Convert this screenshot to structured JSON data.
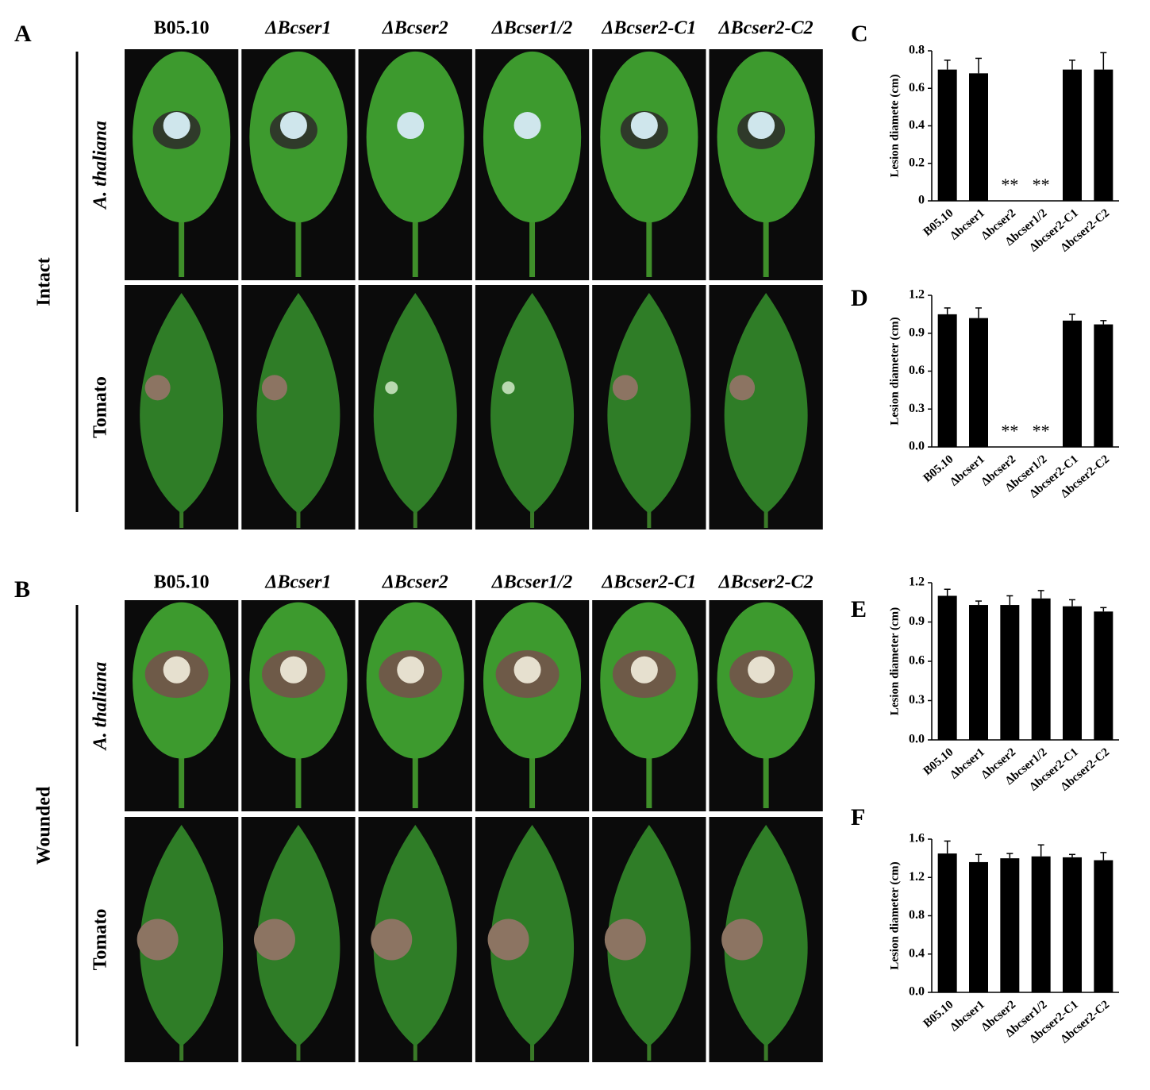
{
  "panels": [
    {
      "letter": "A",
      "condition": "Intact",
      "columns": [
        "B05.10",
        "ΔBcser1",
        "ΔBcser2",
        "ΔBcser1/2",
        "ΔBcser2-C1",
        "ΔBcser2-C2"
      ],
      "rows": [
        "A. thaliana",
        "Tomato"
      ]
    },
    {
      "letter": "B",
      "condition": "Wounded",
      "columns": [
        "B05.10",
        "ΔBcser1",
        "ΔBcser2",
        "ΔBcser1/2",
        "ΔBcser2-C1",
        "ΔBcser2-C2"
      ],
      "rows": [
        "A. thaliana",
        "Tomato"
      ]
    }
  ],
  "chart_data": [
    {
      "type": "bar",
      "letter": "C",
      "ylabel": "Lesion diamete (cm)",
      "categories": [
        "B05.10",
        "Δbcser1",
        "Δbcser2",
        "Δbcser1/2",
        "Δbcser2-C1",
        "Δbcser2-C2"
      ],
      "values": [
        0.7,
        0.68,
        0,
        0,
        0.7,
        0.7
      ],
      "errors": [
        0.05,
        0.08,
        0,
        0,
        0.05,
        0.09
      ],
      "significance": [
        null,
        null,
        "**",
        "**",
        null,
        null
      ],
      "color": "#000000",
      "ylim": [
        0,
        0.8
      ],
      "yticks": [
        0,
        0.2,
        0.4,
        0.6,
        0.8
      ]
    },
    {
      "type": "bar",
      "letter": "D",
      "ylabel": "Lesion diameter (cm)",
      "categories": [
        "B05.10",
        "Δbcser1",
        "Δbcser2",
        "Δbcser1/2",
        "Δbcser2-C1",
        "Δbcser2-C2"
      ],
      "values": [
        1.05,
        1.02,
        0,
        0,
        1.0,
        0.97
      ],
      "errors": [
        0.05,
        0.08,
        0,
        0,
        0.05,
        0.03
      ],
      "significance": [
        null,
        null,
        "**",
        "**",
        null,
        null
      ],
      "color": "#000000",
      "ylim": [
        0,
        1.2
      ],
      "yticks": [
        {
          "value": 0,
          "label": "0.0"
        },
        0.3,
        0.6,
        0.9,
        1.2
      ]
    },
    {
      "type": "bar",
      "letter": "E",
      "ylabel": "Lesion diameter (cm)",
      "categories": [
        "B05.10",
        "Δbcser1",
        "Δbcser2",
        "Δbcser1/2",
        "Δbcser2-C1",
        "Δbcser2-C2"
      ],
      "values": [
        1.1,
        1.03,
        1.03,
        1.08,
        1.02,
        0.98
      ],
      "errors": [
        0.05,
        0.03,
        0.07,
        0.06,
        0.05,
        0.03
      ],
      "color": "#000000",
      "ylim": [
        0,
        1.2
      ],
      "yticks": [
        {
          "value": 0,
          "label": "0.0"
        },
        0.3,
        0.6,
        0.9,
        1.2
      ]
    },
    {
      "type": "bar",
      "letter": "F",
      "ylabel": "Lesion diameter (cm)",
      "categories": [
        "B05.10",
        "Δbcser1",
        "Δbcser2",
        "Δbcser1/2",
        "Δbcser2-C1",
        "Δbcser2-C2"
      ],
      "values": [
        1.45,
        1.36,
        1.4,
        1.42,
        1.41,
        1.38
      ],
      "errors": [
        0.13,
        0.08,
        0.05,
        0.12,
        0.03,
        0.08
      ],
      "color": "#000000",
      "ylim": [
        0,
        1.6
      ],
      "yticks": [
        {
          "value": 0,
          "label": "0.0"
        },
        0.4,
        0.8,
        1.2,
        1.6
      ]
    }
  ]
}
